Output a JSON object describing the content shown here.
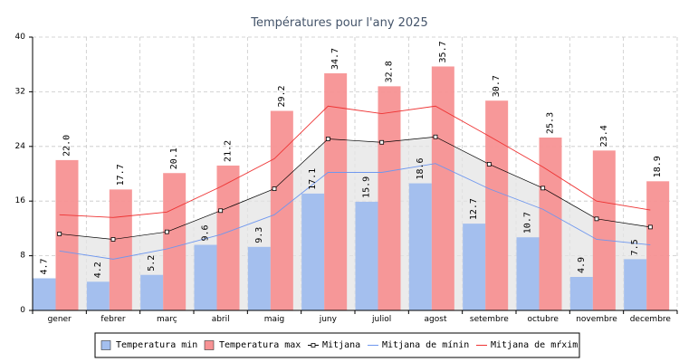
{
  "chart_data": {
    "type": "bar",
    "title": "Températures pour l'any 2025",
    "categories": [
      "gener",
      "febrer",
      "març",
      "abril",
      "maig",
      "juny",
      "juliol",
      "agost",
      "setembre",
      "octubre",
      "novembre",
      "decembre"
    ],
    "ylim": [
      0,
      40
    ],
    "yticks": [
      0,
      8,
      16,
      24,
      32,
      40
    ],
    "grid": true,
    "legend_position": "bottom",
    "series": [
      {
        "name": "Temperatura min",
        "kind": "bar",
        "color": "#a4bfee",
        "values": [
          4.7,
          4.2,
          5.2,
          9.6,
          9.3,
          17.1,
          15.9,
          18.6,
          12.7,
          10.7,
          4.9,
          7.5
        ]
      },
      {
        "name": "Temperatura max",
        "kind": "bar",
        "color": "#f79294",
        "values": [
          22.0,
          17.7,
          20.1,
          21.2,
          29.2,
          34.7,
          32.8,
          35.7,
          30.7,
          25.3,
          23.4,
          18.9
        ]
      },
      {
        "name": "Mitjana",
        "kind": "line",
        "color": "#000000",
        "values": [
          11.2,
          10.4,
          11.5,
          14.6,
          17.8,
          25.1,
          24.6,
          25.4,
          21.4,
          17.9,
          13.4,
          12.2
        ]
      },
      {
        "name": "Mitjana de mínin",
        "kind": "line",
        "color": "#6f97ee",
        "values": [
          8.7,
          7.5,
          9.0,
          11.1,
          14.0,
          20.2,
          20.2,
          21.5,
          17.8,
          14.8,
          10.4,
          9.6
        ]
      },
      {
        "name": "Mitjana de mŕxim",
        "kind": "line",
        "color": "#ee3333",
        "values": [
          14.0,
          13.6,
          14.4,
          18.1,
          22.2,
          29.9,
          28.8,
          29.9,
          25.5,
          21.0,
          16.0,
          14.7
        ]
      }
    ]
  }
}
